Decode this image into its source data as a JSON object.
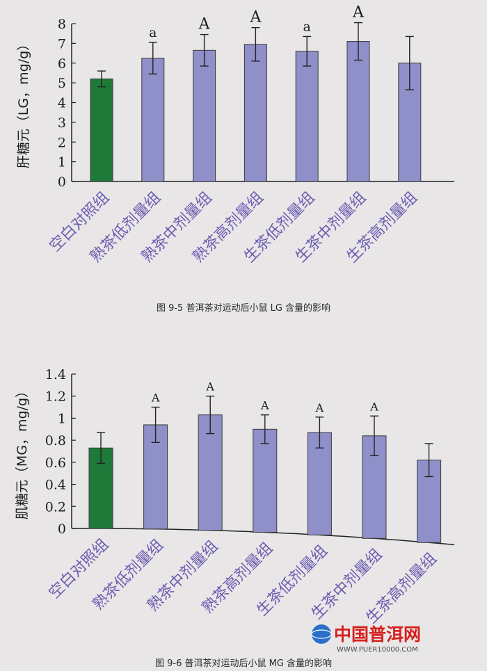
{
  "chart_data": [
    {
      "type": "bar",
      "caption": "图 9-5  普洱茶对运动后小鼠 LG 含量的影响",
      "ylabel": "肝糖元（LG，mg/g）",
      "ylim": [
        0,
        8
      ],
      "yticks": [
        "0",
        "1",
        "2",
        "3",
        "4",
        "5",
        "6",
        "7",
        "8"
      ],
      "categories": [
        "空白对照组",
        "熟茶低剂量组",
        "熟茶中剂量组",
        "熟茶高剂量组",
        "生茶低剂量组",
        "生茶中剂量组",
        "生茶高剂量组"
      ],
      "values": [
        5.2,
        6.25,
        6.65,
        6.95,
        6.6,
        7.1,
        6.0
      ],
      "errors": [
        0.4,
        0.8,
        0.8,
        0.85,
        0.75,
        0.95,
        1.35
      ],
      "significance": [
        "",
        "a",
        "A",
        "A",
        "a",
        "A",
        ""
      ],
      "colors": [
        "#1f7a3a",
        "#8f8fc9",
        "#8f8fc9",
        "#8f8fc9",
        "#8f8fc9",
        "#8f8fc9",
        "#8f8fc9"
      ]
    },
    {
      "type": "bar",
      "caption": "图 9-6  普洱茶对运动后小鼠 MG 含量的影响",
      "ylabel": "肌糖元（MG，mg/g）",
      "ylim": [
        0,
        1.4
      ],
      "yticks": [
        "0",
        "0.2",
        "0.4",
        "0.6",
        "0.8",
        "1",
        "1.2",
        "1.4"
      ],
      "categories": [
        "空白对照组",
        "熟茶低剂量组",
        "熟茶中剂量组",
        "熟茶高剂量组",
        "生茶低剂量组",
        "生茶中剂量组",
        "生茶高剂量组"
      ],
      "values": [
        0.73,
        0.94,
        1.03,
        0.9,
        0.87,
        0.84,
        0.62
      ],
      "errors": [
        0.14,
        0.16,
        0.17,
        0.13,
        0.14,
        0.18,
        0.15
      ],
      "significance": [
        "",
        "A",
        "A",
        "A",
        "A",
        "A",
        ""
      ],
      "colors": [
        "#1f7a3a",
        "#8f8fc9",
        "#8f8fc9",
        "#8f8fc9",
        "#8f8fc9",
        "#8f8fc9",
        "#8f8fc9"
      ]
    }
  ],
  "watermark": {
    "logo_text": "中国普洱网",
    "url": "WWW.PUER10000.COM",
    "brand_color": "#d5201c"
  }
}
